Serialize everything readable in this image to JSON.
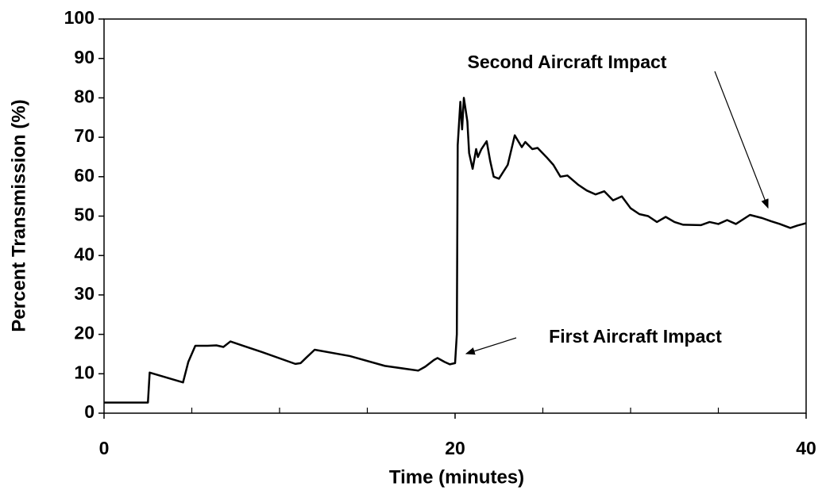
{
  "chart_data": {
    "type": "line",
    "xlabel": "Time (minutes)",
    "ylabel": "Percent Transmission (%)",
    "xlim": [
      0,
      40
    ],
    "xticks": [
      0,
      20,
      40
    ],
    "xminorticks": [
      5,
      10,
      15,
      25,
      30,
      35
    ],
    "ylim": [
      0,
      100
    ],
    "yticks": [
      0,
      10,
      20,
      30,
      40,
      50,
      60,
      70,
      80,
      90,
      100
    ],
    "grid": false,
    "series": [
      {
        "name": "Percent Transmission",
        "color": "#000000",
        "x": [
          0,
          2.5,
          2.6,
          4.5,
          4.8,
          5.2,
          5.9,
          6.4,
          6.8,
          7.2,
          8,
          9,
          10.9,
          11.2,
          11.5,
          12,
          14,
          16,
          17.9,
          18.3,
          18.8,
          19,
          19.4,
          19.7,
          20,
          20.1,
          20.15,
          20.3,
          20.4,
          20.5,
          20.7,
          20.8,
          21,
          21.2,
          21.3,
          21.5,
          21.8,
          22,
          22.2,
          22.5,
          23,
          23.4,
          23.8,
          24,
          24.4,
          24.7,
          25.2,
          25.6,
          26,
          26.4,
          27,
          27.5,
          28,
          28.5,
          29,
          29.5,
          30,
          30.5,
          31,
          31.5,
          32,
          32.5,
          33,
          34,
          34.5,
          35,
          35.5,
          36,
          36.8,
          37.5,
          38,
          38.5,
          39.1,
          39.5,
          40
        ],
        "values": [
          2.7,
          2.7,
          10.3,
          7.8,
          13,
          17.1,
          17.1,
          17.2,
          16.8,
          18.2,
          17,
          15.5,
          12.5,
          12.7,
          14,
          16.1,
          14.5,
          12,
          10.8,
          11.8,
          13.5,
          14,
          13,
          12.4,
          12.7,
          20,
          68,
          79,
          72,
          80,
          74,
          66,
          62,
          67,
          65,
          67,
          69,
          64,
          60,
          59.5,
          63,
          70.5,
          67.5,
          68.8,
          67,
          67.3,
          65,
          63,
          60,
          60.3,
          58,
          56.5,
          55.5,
          56.3,
          54,
          55,
          52,
          50.5,
          50,
          48.5,
          49.8,
          48.5,
          47.8,
          47.7,
          48.5,
          48,
          49,
          48,
          50.3,
          49.5,
          48.7,
          48,
          47,
          47.6,
          48.2
        ]
      }
    ],
    "annotations": [
      "Second Aircraft Impact",
      "First Aircraft Impact"
    ]
  }
}
